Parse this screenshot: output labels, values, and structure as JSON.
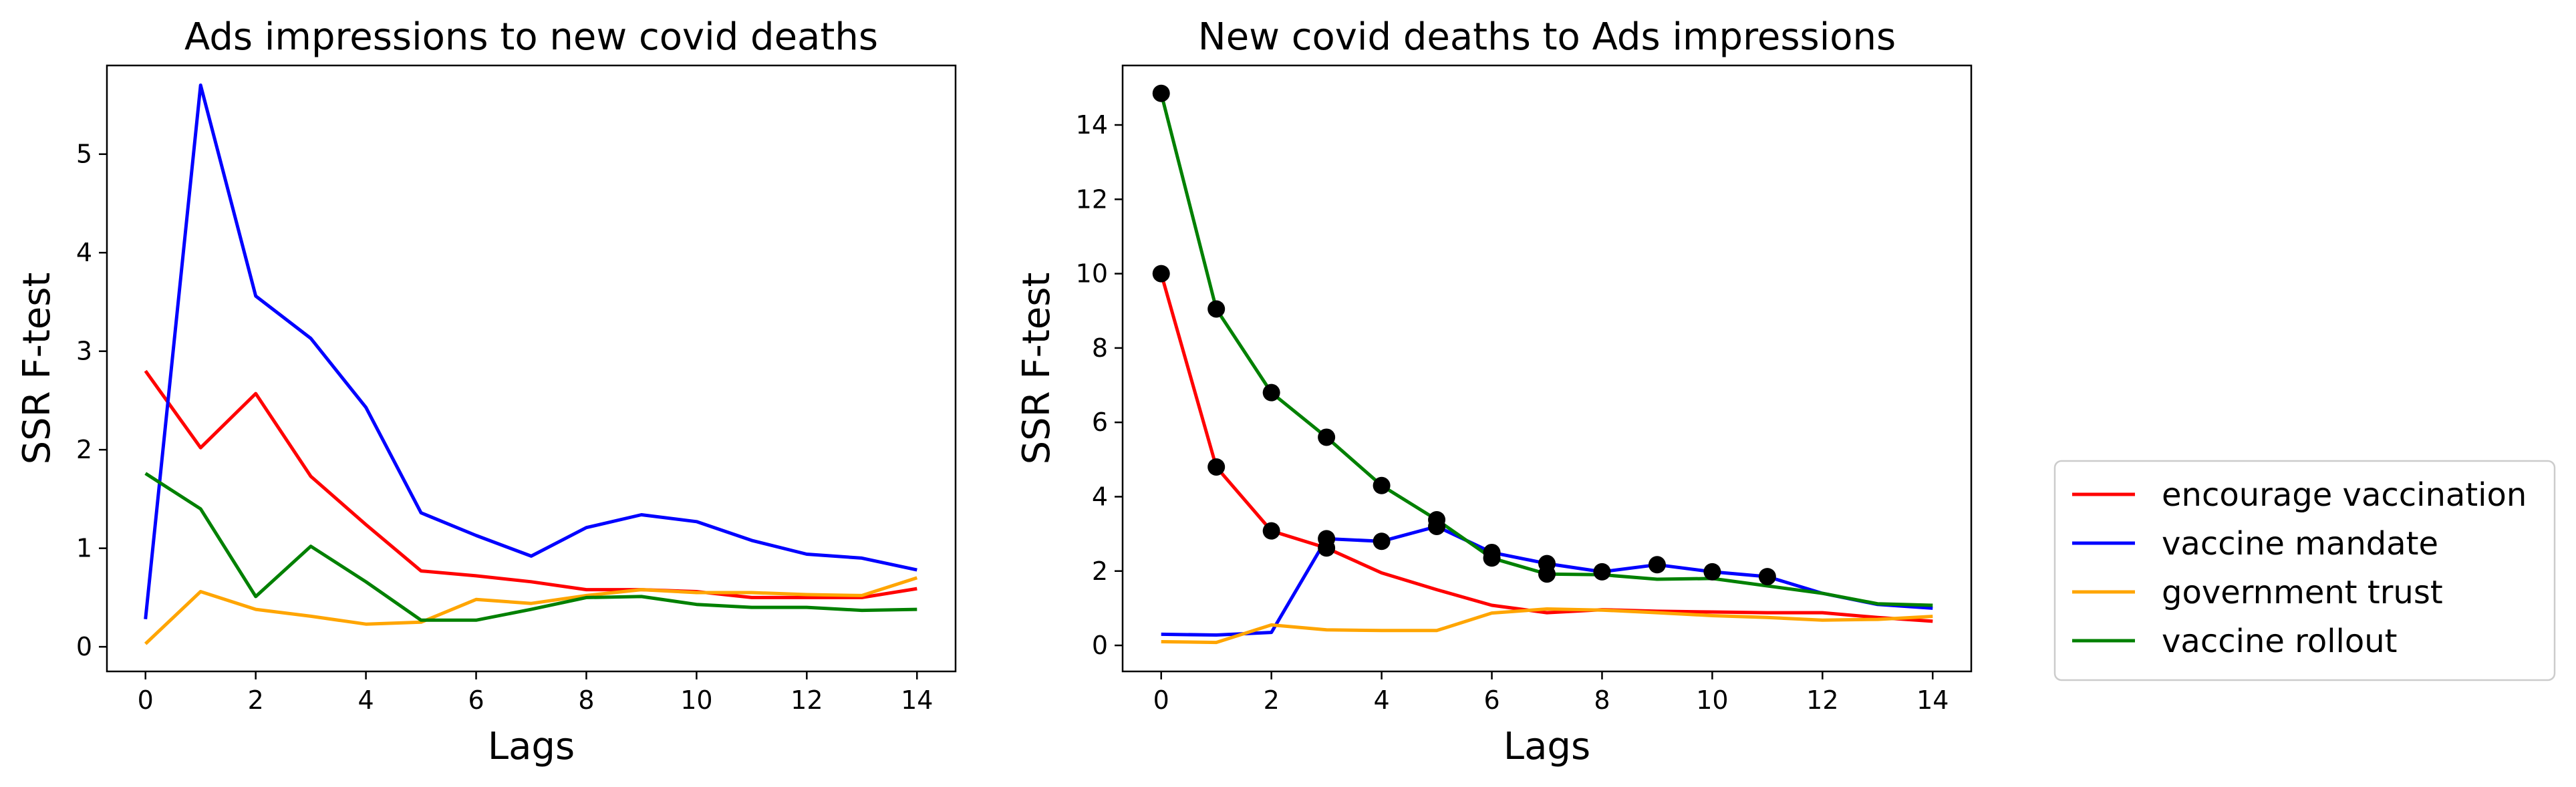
{
  "colors": {
    "encourage vaccination": "#ff0000",
    "vaccine mandate": "#0000ff",
    "government trust": "#ffa500",
    "vaccine rollout": "#008000",
    "marker": "#000000"
  },
  "legend": {
    "placement": "right",
    "items": [
      "encourage vaccination",
      "vaccine mandate",
      "government trust",
      "vaccine rollout"
    ]
  },
  "chart_data": [
    {
      "type": "line",
      "title": "Ads impressions to new covid deaths",
      "xlabel": "Lags",
      "ylabel": "SSR F-test",
      "x": [
        0,
        1,
        2,
        3,
        4,
        5,
        6,
        7,
        8,
        9,
        10,
        11,
        12,
        13,
        14
      ],
      "xlim": [
        -0.7,
        14.7
      ],
      "ylim": [
        -0.25,
        5.9
      ],
      "xticks": [
        "0",
        "2",
        "4",
        "6",
        "8",
        "10",
        "12",
        "14"
      ],
      "yticks": [
        "0",
        "1",
        "2",
        "3",
        "4",
        "5"
      ],
      "series": [
        {
          "name": "encourage vaccination",
          "values": [
            2.8,
            2.02,
            2.57,
            1.73,
            1.24,
            0.77,
            0.72,
            0.66,
            0.58,
            0.58,
            0.56,
            0.5,
            0.5,
            0.5,
            0.59
          ],
          "markers": []
        },
        {
          "name": "vaccine mandate",
          "values": [
            0.28,
            5.7,
            3.56,
            3.13,
            2.43,
            1.36,
            1.13,
            0.92,
            1.21,
            1.34,
            1.27,
            1.08,
            0.94,
            0.9,
            0.78
          ],
          "markers": []
        },
        {
          "name": "government trust",
          "values": [
            0.03,
            0.56,
            0.38,
            0.31,
            0.23,
            0.25,
            0.48,
            0.44,
            0.52,
            0.58,
            0.55,
            0.55,
            0.53,
            0.52,
            0.7
          ],
          "markers": []
        },
        {
          "name": "vaccine rollout",
          "values": [
            1.76,
            1.4,
            0.51,
            1.02,
            0.66,
            0.27,
            0.27,
            0.38,
            0.5,
            0.51,
            0.43,
            0.4,
            0.4,
            0.37,
            0.38
          ],
          "markers": []
        }
      ]
    },
    {
      "type": "line",
      "title": "New covid deaths to Ads impressions",
      "xlabel": "Lags",
      "ylabel": "SSR F-test",
      "x": [
        0,
        1,
        2,
        3,
        4,
        5,
        6,
        7,
        8,
        9,
        10,
        11,
        12,
        13,
        14
      ],
      "xlim": [
        -0.7,
        14.7
      ],
      "ylim": [
        -0.7,
        15.6
      ],
      "xticks": [
        "0",
        "2",
        "4",
        "6",
        "8",
        "10",
        "12",
        "14"
      ],
      "yticks": [
        "0",
        "2",
        "4",
        "6",
        "8",
        "10",
        "12",
        "14"
      ],
      "series": [
        {
          "name": "encourage vaccination",
          "values": [
            10.0,
            4.8,
            3.08,
            2.62,
            1.95,
            1.5,
            1.08,
            0.88,
            0.96,
            0.92,
            0.9,
            0.88,
            0.88,
            0.75,
            0.65
          ],
          "markers": [
            0,
            1,
            2,
            3
          ]
        },
        {
          "name": "vaccine mandate",
          "values": [
            0.3,
            0.28,
            0.35,
            2.87,
            2.8,
            3.2,
            2.5,
            2.2,
            1.98,
            2.17,
            1.98,
            1.85,
            1.4,
            1.1,
            1.0
          ],
          "markers": [
            3,
            4,
            5,
            6,
            7,
            8,
            9,
            10,
            11
          ]
        },
        {
          "name": "government trust",
          "values": [
            0.1,
            0.08,
            0.55,
            0.42,
            0.4,
            0.4,
            0.87,
            0.98,
            0.95,
            0.88,
            0.8,
            0.75,
            0.68,
            0.7,
            0.78
          ],
          "markers": []
        },
        {
          "name": "vaccine rollout",
          "values": [
            14.85,
            9.05,
            6.8,
            5.6,
            4.3,
            3.38,
            2.35,
            1.92,
            1.9,
            1.78,
            1.8,
            1.6,
            1.4,
            1.12,
            1.08
          ],
          "markers": [
            0,
            1,
            2,
            3,
            4,
            5,
            6,
            7
          ]
        }
      ]
    }
  ]
}
